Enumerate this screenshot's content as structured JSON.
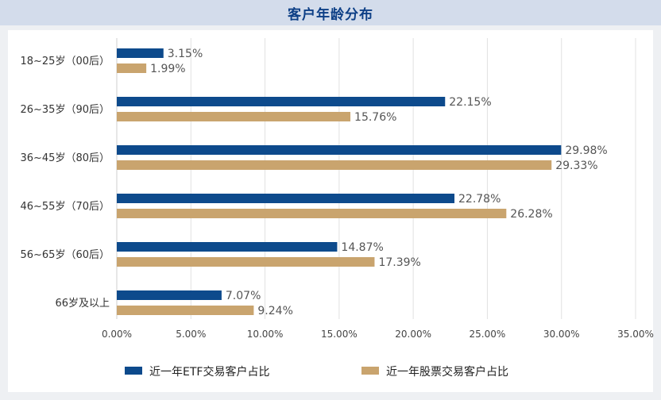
{
  "title": "客户年龄分布",
  "colors": {
    "etf": "#0d4a8c",
    "stock": "#c9a46e",
    "grid": "#e1e1e1",
    "header_bg": "#d3dceb",
    "title": "#0d3f86"
  },
  "chart_data": {
    "type": "bar",
    "orientation": "horizontal",
    "title": "客户年龄分布",
    "categories": [
      "18~25岁（00后）",
      "26~35岁（90后）",
      "36~45岁（80后）",
      "46~55岁（70后）",
      "56~65岁（60后）",
      "66岁及以上"
    ],
    "series": [
      {
        "name": "近一年ETF交易客户占比",
        "values": [
          3.15,
          22.15,
          29.98,
          22.78,
          14.87,
          7.07
        ],
        "labels": [
          "3.15%",
          "22.15%",
          "29.98%",
          "22.78%",
          "14.87%",
          "7.07%"
        ]
      },
      {
        "name": "近一年股票交易客户占比",
        "values": [
          1.99,
          15.76,
          29.33,
          26.28,
          17.39,
          9.24
        ],
        "labels": [
          "1.99%",
          "15.76%",
          "29.33%",
          "26.28%",
          "17.39%",
          "9.24%"
        ]
      }
    ],
    "xlim": [
      0,
      35
    ],
    "xticks": [
      "0.00%",
      "5.00%",
      "10.00%",
      "15.00%",
      "20.00%",
      "25.00%",
      "30.00%",
      "35.00%"
    ],
    "grid": true,
    "legend_position": "bottom"
  }
}
